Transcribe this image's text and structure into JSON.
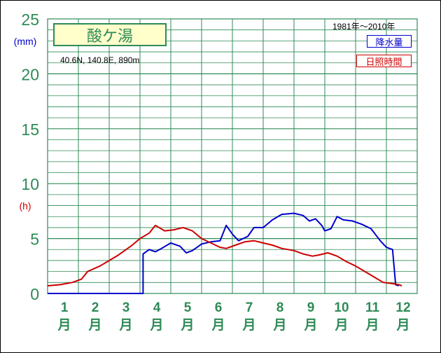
{
  "title": "酸ケ湯",
  "location": "40.6N,  140.8E,  890m",
  "period": "1981年〜2010年",
  "colors": {
    "grid": "#2e8b57",
    "axis_text": "#2e8b57",
    "precip": "#0000cc",
    "sunshine": "#cc0000",
    "title_bg": "#ffffcc"
  },
  "y_axis": {
    "ticks": [
      "0",
      "5",
      "10",
      "15",
      "20",
      "25"
    ],
    "unit_precip": "(mm)",
    "unit_sun": "(h)",
    "ylim": [
      0,
      25
    ]
  },
  "x_axis": {
    "months": [
      "1",
      "2",
      "3",
      "4",
      "5",
      "6",
      "7",
      "8",
      "9",
      "10",
      "11",
      "12"
    ],
    "month_char": "月"
  },
  "chart_data": {
    "type": "line",
    "title": "酸ケ湯",
    "x_unit": "month (daily, 1 Jan – 31 Dec)",
    "ylim": [
      0,
      25
    ],
    "series": [
      {
        "name": "降水量",
        "unit": "mm",
        "points": [
          [
            1,
            0
          ],
          [
            2,
            0
          ],
          [
            3,
            0
          ],
          [
            4,
            0
          ],
          [
            4.1,
            0
          ],
          [
            4.1,
            3.6
          ],
          [
            4.3,
            4.0
          ],
          [
            4.5,
            3.8
          ],
          [
            4.7,
            4.1
          ],
          [
            5,
            4.6
          ],
          [
            5.3,
            4.3
          ],
          [
            5.5,
            3.7
          ],
          [
            5.7,
            3.9
          ],
          [
            6,
            4.5
          ],
          [
            6.3,
            4.7
          ],
          [
            6.6,
            4.8
          ],
          [
            6.8,
            6.2
          ],
          [
            7,
            5.4
          ],
          [
            7.2,
            4.8
          ],
          [
            7.5,
            5.2
          ],
          [
            7.7,
            6.0
          ],
          [
            8,
            6.0
          ],
          [
            8.3,
            6.7
          ],
          [
            8.6,
            7.2
          ],
          [
            9,
            7.3
          ],
          [
            9.3,
            7.1
          ],
          [
            9.5,
            6.6
          ],
          [
            9.7,
            6.8
          ],
          [
            9.9,
            6.2
          ],
          [
            10,
            5.7
          ],
          [
            10.2,
            5.9
          ],
          [
            10.4,
            7.0
          ],
          [
            10.6,
            6.7
          ],
          [
            10.9,
            6.6
          ],
          [
            11.2,
            6.3
          ],
          [
            11.5,
            5.9
          ],
          [
            11.8,
            4.8
          ],
          [
            12,
            4.2
          ],
          [
            12.2,
            4.0
          ],
          [
            12.3,
            0.8
          ],
          [
            12.4,
            0.7
          ]
        ]
      },
      {
        "name": "日照時間",
        "unit": "h",
        "points": [
          [
            1,
            0.7
          ],
          [
            1.4,
            0.8
          ],
          [
            1.8,
            1.0
          ],
          [
            2.1,
            1.3
          ],
          [
            2.3,
            2.0
          ],
          [
            2.7,
            2.5
          ],
          [
            3,
            3.0
          ],
          [
            3.3,
            3.5
          ],
          [
            3.7,
            4.3
          ],
          [
            4,
            5.0
          ],
          [
            4.3,
            5.5
          ],
          [
            4.5,
            6.2
          ],
          [
            4.8,
            5.7
          ],
          [
            5.1,
            5.8
          ],
          [
            5.4,
            6.0
          ],
          [
            5.7,
            5.7
          ],
          [
            6,
            5.0
          ],
          [
            6.3,
            4.6
          ],
          [
            6.6,
            4.2
          ],
          [
            6.8,
            4.1
          ],
          [
            7.1,
            4.4
          ],
          [
            7.4,
            4.7
          ],
          [
            7.7,
            4.8
          ],
          [
            8,
            4.6
          ],
          [
            8.3,
            4.4
          ],
          [
            8.6,
            4.1
          ],
          [
            9,
            3.9
          ],
          [
            9.3,
            3.6
          ],
          [
            9.6,
            3.4
          ],
          [
            9.8,
            3.5
          ],
          [
            10.1,
            3.7
          ],
          [
            10.4,
            3.4
          ],
          [
            10.7,
            2.9
          ],
          [
            11,
            2.5
          ],
          [
            11.3,
            2.0
          ],
          [
            11.6,
            1.5
          ],
          [
            11.9,
            1.0
          ],
          [
            12.2,
            0.9
          ],
          [
            12.4,
            0.8
          ],
          [
            12.5,
            0.7
          ]
        ]
      }
    ]
  }
}
